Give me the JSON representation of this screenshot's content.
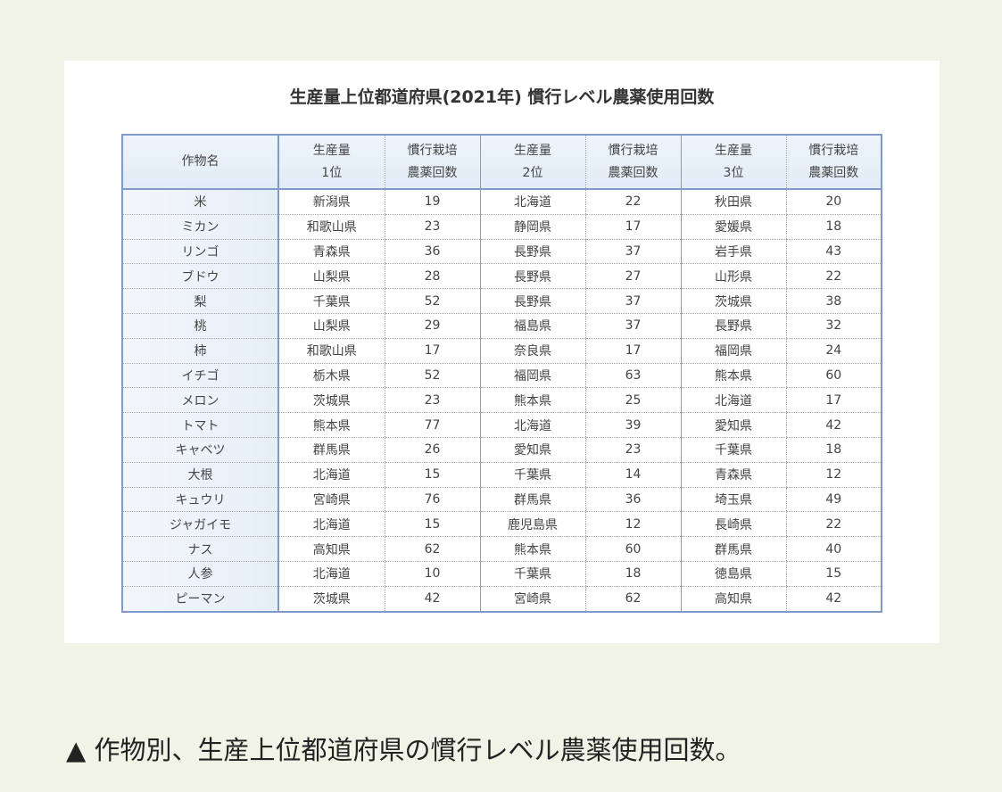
{
  "title": "生産量上位都道府県(2021年) 慣行レベル農薬使用回数",
  "headers": [
    [
      "作物名"
    ],
    [
      "生産量",
      "1位"
    ],
    [
      "慣行栽培",
      "農薬回数"
    ],
    [
      "生産量",
      "2位"
    ],
    [
      "慣行栽培",
      "農薬回数"
    ],
    [
      "生産量",
      "3位"
    ],
    [
      "慣行栽培",
      "農薬回数"
    ]
  ],
  "rows": [
    [
      "米",
      "新潟県",
      "19",
      "北海道",
      "22",
      "秋田県",
      "20"
    ],
    [
      "ミカン",
      "和歌山県",
      "23",
      "静岡県",
      "17",
      "愛媛県",
      "18"
    ],
    [
      "リンゴ",
      "青森県",
      "36",
      "長野県",
      "37",
      "岩手県",
      "43"
    ],
    [
      "ブドウ",
      "山梨県",
      "28",
      "長野県",
      "27",
      "山形県",
      "22"
    ],
    [
      "梨",
      "千葉県",
      "52",
      "長野県",
      "37",
      "茨城県",
      "38"
    ],
    [
      "桃",
      "山梨県",
      "29",
      "福島県",
      "37",
      "長野県",
      "32"
    ],
    [
      "柿",
      "和歌山県",
      "17",
      "奈良県",
      "17",
      "福岡県",
      "24"
    ],
    [
      "イチゴ",
      "栃木県",
      "52",
      "福岡県",
      "63",
      "熊本県",
      "60"
    ],
    [
      "メロン",
      "茨城県",
      "23",
      "熊本県",
      "25",
      "北海道",
      "17"
    ],
    [
      "トマト",
      "熊本県",
      "77",
      "北海道",
      "39",
      "愛知県",
      "42"
    ],
    [
      "キャベツ",
      "群馬県",
      "26",
      "愛知県",
      "23",
      "千葉県",
      "18"
    ],
    [
      "大根",
      "北海道",
      "15",
      "千葉県",
      "14",
      "青森県",
      "12"
    ],
    [
      "キュウリ",
      "宮崎県",
      "76",
      "群馬県",
      "36",
      "埼玉県",
      "49"
    ],
    [
      "ジャガイモ",
      "北海道",
      "15",
      "鹿児島県",
      "12",
      "長崎県",
      "22"
    ],
    [
      "ナス",
      "高知県",
      "62",
      "熊本県",
      "60",
      "群馬県",
      "40"
    ],
    [
      "人参",
      "北海道",
      "10",
      "千葉県",
      "18",
      "徳島県",
      "15"
    ],
    [
      "ピーマン",
      "茨城県",
      "42",
      "宮崎県",
      "62",
      "高知県",
      "42"
    ]
  ],
  "caption": "▲ 作物別、生産上位都道府県の慣行レベル農薬使用回数。"
}
